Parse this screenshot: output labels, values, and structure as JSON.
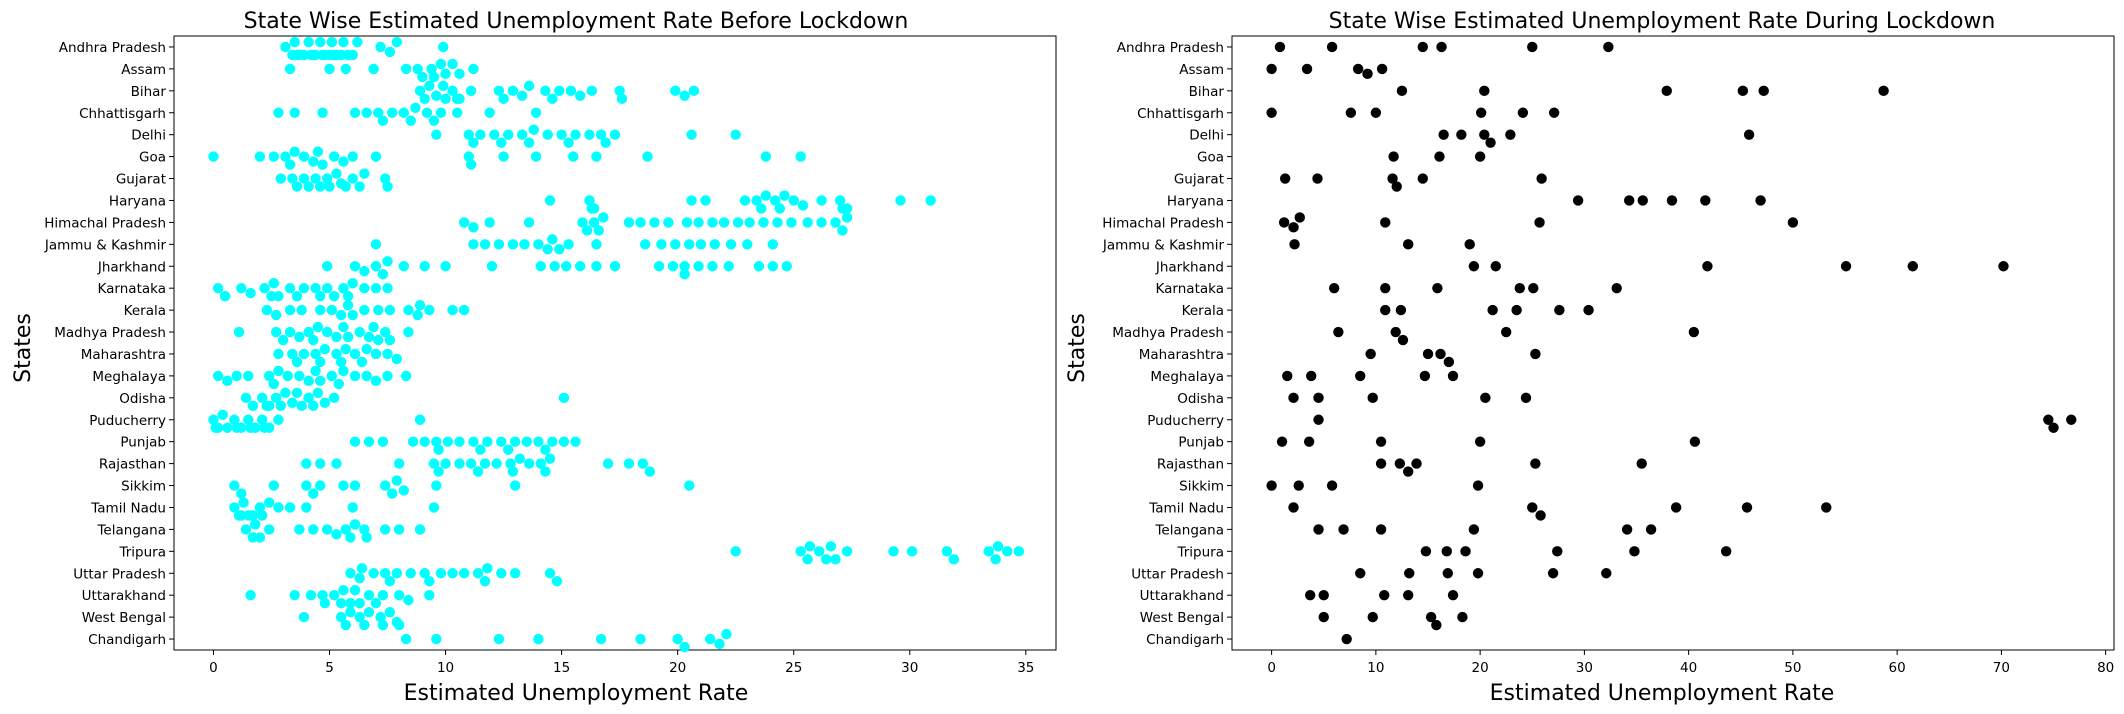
{
  "chart_data": [
    {
      "type": "scatter",
      "title": "State Wise Estimated Unemployment Rate Before Lockdown",
      "xlabel": "Estimated Unemployment Rate",
      "ylabel": "States",
      "xlim": [
        -1.7,
        36.3
      ],
      "xticks": [
        0,
        5,
        10,
        15,
        20,
        25,
        30,
        35
      ],
      "color": "#00ffff",
      "categories": [
        "Andhra Pradesh",
        "Assam",
        "Bihar",
        "Chhattisgarh",
        "Delhi",
        "Goa",
        "Gujarat",
        "Haryana",
        "Himachal Pradesh",
        "Jammu & Kashmir",
        "Jharkhand",
        "Karnataka",
        "Kerala",
        "Madhya Pradesh",
        "Maharashtra",
        "Meghalaya",
        "Odisha",
        "Puducherry",
        "Punjab",
        "Rajasthan",
        "Sikkim",
        "Tamil Nadu",
        "Telangana",
        "Tripura",
        "Uttar Pradesh",
        "Uttarakhand",
        "West Bengal",
        "Chandigarh"
      ],
      "values": [
        [
          3.1,
          3.4,
          3.6,
          3.9,
          4.1,
          4.3,
          4.6,
          4.8,
          5.0,
          5.3,
          5.5,
          5.8,
          6.0,
          7.2,
          7.6,
          7.9,
          9.9,
          3.7,
          4.2,
          4.7,
          5.1,
          5.6,
          6.2,
          3.5,
          4.4,
          5.2
        ],
        [
          3.3,
          5.0,
          5.7,
          6.9,
          8.3,
          8.8,
          9.0,
          9.4,
          9.8,
          10.3,
          10.6,
          11.2,
          9.5,
          10.0
        ],
        [
          8.9,
          9.3,
          9.6,
          10.0,
          10.3,
          10.6,
          11.1,
          12.3,
          12.9,
          13.6,
          14.3,
          14.9,
          15.4,
          15.8,
          16.3,
          17.5,
          19.9,
          20.3,
          20.7,
          9.1,
          9.9,
          10.5,
          12.5,
          13.3,
          14.6,
          17.6
        ],
        [
          2.8,
          3.5,
          4.7,
          6.1,
          6.6,
          7.1,
          7.7,
          8.2,
          8.7,
          9.2,
          9.8,
          10.5,
          11.9,
          13.9,
          7.3,
          8.5,
          9.5
        ],
        [
          9.6,
          11.0,
          11.5,
          12.1,
          12.7,
          13.3,
          13.8,
          14.4,
          15.0,
          15.6,
          16.2,
          16.7,
          17.3,
          20.6,
          22.5,
          11.2,
          12.4,
          13.6,
          15.3,
          16.9
        ],
        [
          0.0,
          2.0,
          2.6,
          3.1,
          3.5,
          3.9,
          4.3,
          4.7,
          5.2,
          5.6,
          6.0,
          7.0,
          11.0,
          12.5,
          13.9,
          15.5,
          16.5,
          18.7,
          23.8,
          25.3,
          3.3,
          4.5,
          11.1
        ],
        [
          2.9,
          3.4,
          3.9,
          4.4,
          4.9,
          5.3,
          5.7,
          6.0,
          6.5,
          7.5,
          3.6,
          4.6,
          5.5,
          6.3,
          7.4,
          4.1,
          5.0
        ],
        [
          14.5,
          16.2,
          16.4,
          20.6,
          21.2,
          22.9,
          23.4,
          23.8,
          24.2,
          24.6,
          25.0,
          25.4,
          26.2,
          27.0,
          27.3,
          29.6,
          30.9,
          23.6,
          24.4,
          27.1,
          16.3
        ],
        [
          10.8,
          11.2,
          11.9,
          13.6,
          15.9,
          16.1,
          16.4,
          16.8,
          17.9,
          18.4,
          19.0,
          19.6,
          20.4,
          20.9,
          21.5,
          22.0,
          22.6,
          23.1,
          23.7,
          24.3,
          24.9,
          25.6,
          26.2,
          26.8,
          27.3,
          16.6,
          27.1
        ],
        [
          7.0,
          11.2,
          11.7,
          12.3,
          12.9,
          13.4,
          14.0,
          14.4,
          14.9,
          15.3,
          16.5,
          18.6,
          19.3,
          19.9,
          20.5,
          21.0,
          21.6,
          22.3,
          23.0,
          24.1,
          14.6
        ],
        [
          4.9,
          6.1,
          6.5,
          7.0,
          7.5,
          8.2,
          9.1,
          10.0,
          12.0,
          14.1,
          14.7,
          15.2,
          15.8,
          16.5,
          17.3,
          19.2,
          19.8,
          20.3,
          20.9,
          21.5,
          22.2,
          23.5,
          24.1,
          24.7,
          7.3,
          20.3
        ],
        [
          0.2,
          0.5,
          1.2,
          1.6,
          2.2,
          2.5,
          2.8,
          3.3,
          3.9,
          4.4,
          4.9,
          5.2,
          5.6,
          6.0,
          6.5,
          7.0,
          7.5,
          0.5,
          2.6,
          3.6,
          4.6,
          5.8
        ],
        [
          2.3,
          2.7,
          3.3,
          3.8,
          4.6,
          5.1,
          5.5,
          6.0,
          6.5,
          7.1,
          7.6,
          8.4,
          8.9,
          9.3,
          10.3,
          10.8,
          5.8,
          8.8
        ],
        [
          1.1,
          2.7,
          3.3,
          3.7,
          4.1,
          4.5,
          4.9,
          5.3,
          5.8,
          6.3,
          6.7,
          7.1,
          7.6,
          8.4,
          3.0,
          4.3,
          5.6,
          6.9,
          7.4
        ],
        [
          2.8,
          3.4,
          3.9,
          4.4,
          4.8,
          5.3,
          5.7,
          6.1,
          6.6,
          7.0,
          7.5,
          7.9,
          3.6,
          4.6,
          5.5,
          6.4
        ],
        [
          0.2,
          0.6,
          1.0,
          1.5,
          2.4,
          2.8,
          3.2,
          3.7,
          4.1,
          4.6,
          5.1,
          5.6,
          6.1,
          6.6,
          7.0,
          7.5,
          8.3,
          2.6,
          4.4,
          5.4
        ],
        [
          1.4,
          1.7,
          2.1,
          2.4,
          2.7,
          3.1,
          3.4,
          3.8,
          4.1,
          4.5,
          4.8,
          5.2,
          15.1,
          2.3,
          2.9,
          3.6,
          4.3
        ],
        [
          0.0,
          0.2,
          0.6,
          0.9,
          1.2,
          1.5,
          1.8,
          2.1,
          2.4,
          2.8,
          8.9,
          0.1,
          0.4,
          1.0,
          1.6,
          2.2
        ],
        [
          6.1,
          6.7,
          7.3,
          8.6,
          9.1,
          9.6,
          10.1,
          10.6,
          11.2,
          11.8,
          12.4,
          13.0,
          13.5,
          14.0,
          14.6,
          15.1,
          15.6,
          9.7,
          11.5,
          12.7,
          14.3
        ],
        [
          4.0,
          4.6,
          5.3,
          8.0,
          9.5,
          10.0,
          10.6,
          11.1,
          11.7,
          12.2,
          12.8,
          13.2,
          13.6,
          14.1,
          14.5,
          17.0,
          17.9,
          18.5,
          18.8,
          9.7,
          11.4,
          12.9,
          14.3
        ],
        [
          0.9,
          1.2,
          2.6,
          4.0,
          4.6,
          5.6,
          6.1,
          7.4,
          7.9,
          8.2,
          9.6,
          13.0,
          20.5,
          4.3,
          7.7
        ],
        [
          0.9,
          1.1,
          1.3,
          1.5,
          1.7,
          2.0,
          2.4,
          2.8,
          3.3,
          4.0,
          6.0,
          9.5,
          1.2,
          1.6,
          2.1
        ],
        [
          1.4,
          1.7,
          2.0,
          2.4,
          3.7,
          4.3,
          4.9,
          5.3,
          5.7,
          6.1,
          6.5,
          7.4,
          8.0,
          8.9,
          1.8,
          5.9,
          6.6
        ],
        [
          22.5,
          25.3,
          25.7,
          26.1,
          26.4,
          26.8,
          27.3,
          29.3,
          30.1,
          31.6,
          31.9,
          33.4,
          33.8,
          34.2,
          34.7,
          25.6,
          26.6,
          33.7
        ],
        [
          5.9,
          6.4,
          6.9,
          7.4,
          7.9,
          8.5,
          9.3,
          9.8,
          10.3,
          10.8,
          11.4,
          11.8,
          12.4,
          13.0,
          14.5,
          14.8,
          6.3,
          7.6,
          9.1,
          11.7
        ],
        [
          1.6,
          3.5,
          4.2,
          4.7,
          5.2,
          5.6,
          5.9,
          6.3,
          6.7,
          7.3,
          8.0,
          8.4,
          9.3,
          4.8,
          5.5,
          6.1,
          7.0
        ],
        [
          3.9,
          5.5,
          5.9,
          6.3,
          6.7,
          7.2,
          7.6,
          8.0,
          5.7,
          6.5,
          7.3,
          7.9
        ],
        [
          8.3,
          9.6,
          12.3,
          14.0,
          16.7,
          18.4,
          20.0,
          20.3,
          21.4,
          21.8,
          22.1
        ]
      ]
    },
    {
      "type": "scatter",
      "title": "State Wise Estimated Unemployment Rate During Lockdown",
      "xlabel": "Estimated Unemployment Rate",
      "ylabel": "States",
      "xlim": [
        -3.8,
        80.8
      ],
      "xticks": [
        0,
        10,
        20,
        30,
        40,
        50,
        60,
        70,
        80
      ],
      "color": "#000000",
      "categories": [
        "Andhra Pradesh",
        "Assam",
        "Bihar",
        "Chhattisgarh",
        "Delhi",
        "Goa",
        "Gujarat",
        "Haryana",
        "Himachal Pradesh",
        "Jammu & Kashmir",
        "Jharkhand",
        "Karnataka",
        "Kerala",
        "Madhya Pradesh",
        "Maharashtra",
        "Meghalaya",
        "Odisha",
        "Puducherry",
        "Punjab",
        "Rajasthan",
        "Sikkim",
        "Tamil Nadu",
        "Telangana",
        "Tripura",
        "Uttar Pradesh",
        "Uttarakhand",
        "West Bengal",
        "Chandigarh"
      ],
      "values": [
        [
          0.8,
          5.8,
          14.5,
          16.3,
          25.0,
          32.3
        ],
        [
          0.0,
          3.4,
          8.3,
          9.2,
          10.6
        ],
        [
          12.5,
          20.4,
          37.9,
          45.2,
          47.2,
          58.7
        ],
        [
          0.0,
          7.6,
          10.0,
          20.1,
          24.1,
          27.1
        ],
        [
          16.5,
          18.2,
          20.4,
          21.0,
          22.9,
          45.8
        ],
        [
          11.7,
          16.1,
          20.0
        ],
        [
          1.3,
          4.4,
          11.6,
          12.0,
          14.5,
          25.9
        ],
        [
          29.4,
          34.3,
          35.6,
          38.4,
          41.6,
          46.9
        ],
        [
          1.2,
          2.1,
          2.7,
          10.9,
          25.7,
          50.0
        ],
        [
          2.2,
          13.1,
          19.0
        ],
        [
          19.4,
          21.5,
          41.8,
          55.1,
          61.5,
          70.2
        ],
        [
          6.0,
          10.9,
          15.9,
          23.8,
          25.1,
          33.1
        ],
        [
          10.9,
          12.4,
          21.2,
          23.5,
          27.6,
          30.4
        ],
        [
          6.4,
          11.9,
          12.6,
          22.5,
          40.5
        ],
        [
          9.5,
          15.0,
          16.2,
          17.0,
          25.3
        ],
        [
          1.5,
          3.8,
          8.5,
          14.7,
          17.4
        ],
        [
          2.1,
          4.5,
          9.7,
          20.5,
          24.4
        ],
        [
          4.5,
          74.5,
          75.0,
          76.7
        ],
        [
          1.0,
          3.6,
          10.5,
          20.0,
          40.6
        ],
        [
          10.5,
          12.3,
          13.1,
          13.9,
          25.3,
          35.5
        ],
        [
          0.0,
          2.6,
          5.8,
          19.8
        ],
        [
          2.1,
          25.0,
          25.8,
          38.8,
          45.6,
          53.2
        ],
        [
          4.5,
          6.9,
          10.5,
          19.4,
          34.1,
          36.4
        ],
        [
          14.8,
          16.8,
          18.6,
          27.4,
          34.8,
          43.6
        ],
        [
          8.5,
          13.2,
          16.9,
          19.8,
          27.0,
          32.1
        ],
        [
          3.7,
          5.0,
          10.8,
          13.1,
          17.4
        ],
        [
          5.0,
          9.7,
          15.3,
          15.8,
          18.3
        ],
        [
          7.2
        ]
      ]
    }
  ]
}
